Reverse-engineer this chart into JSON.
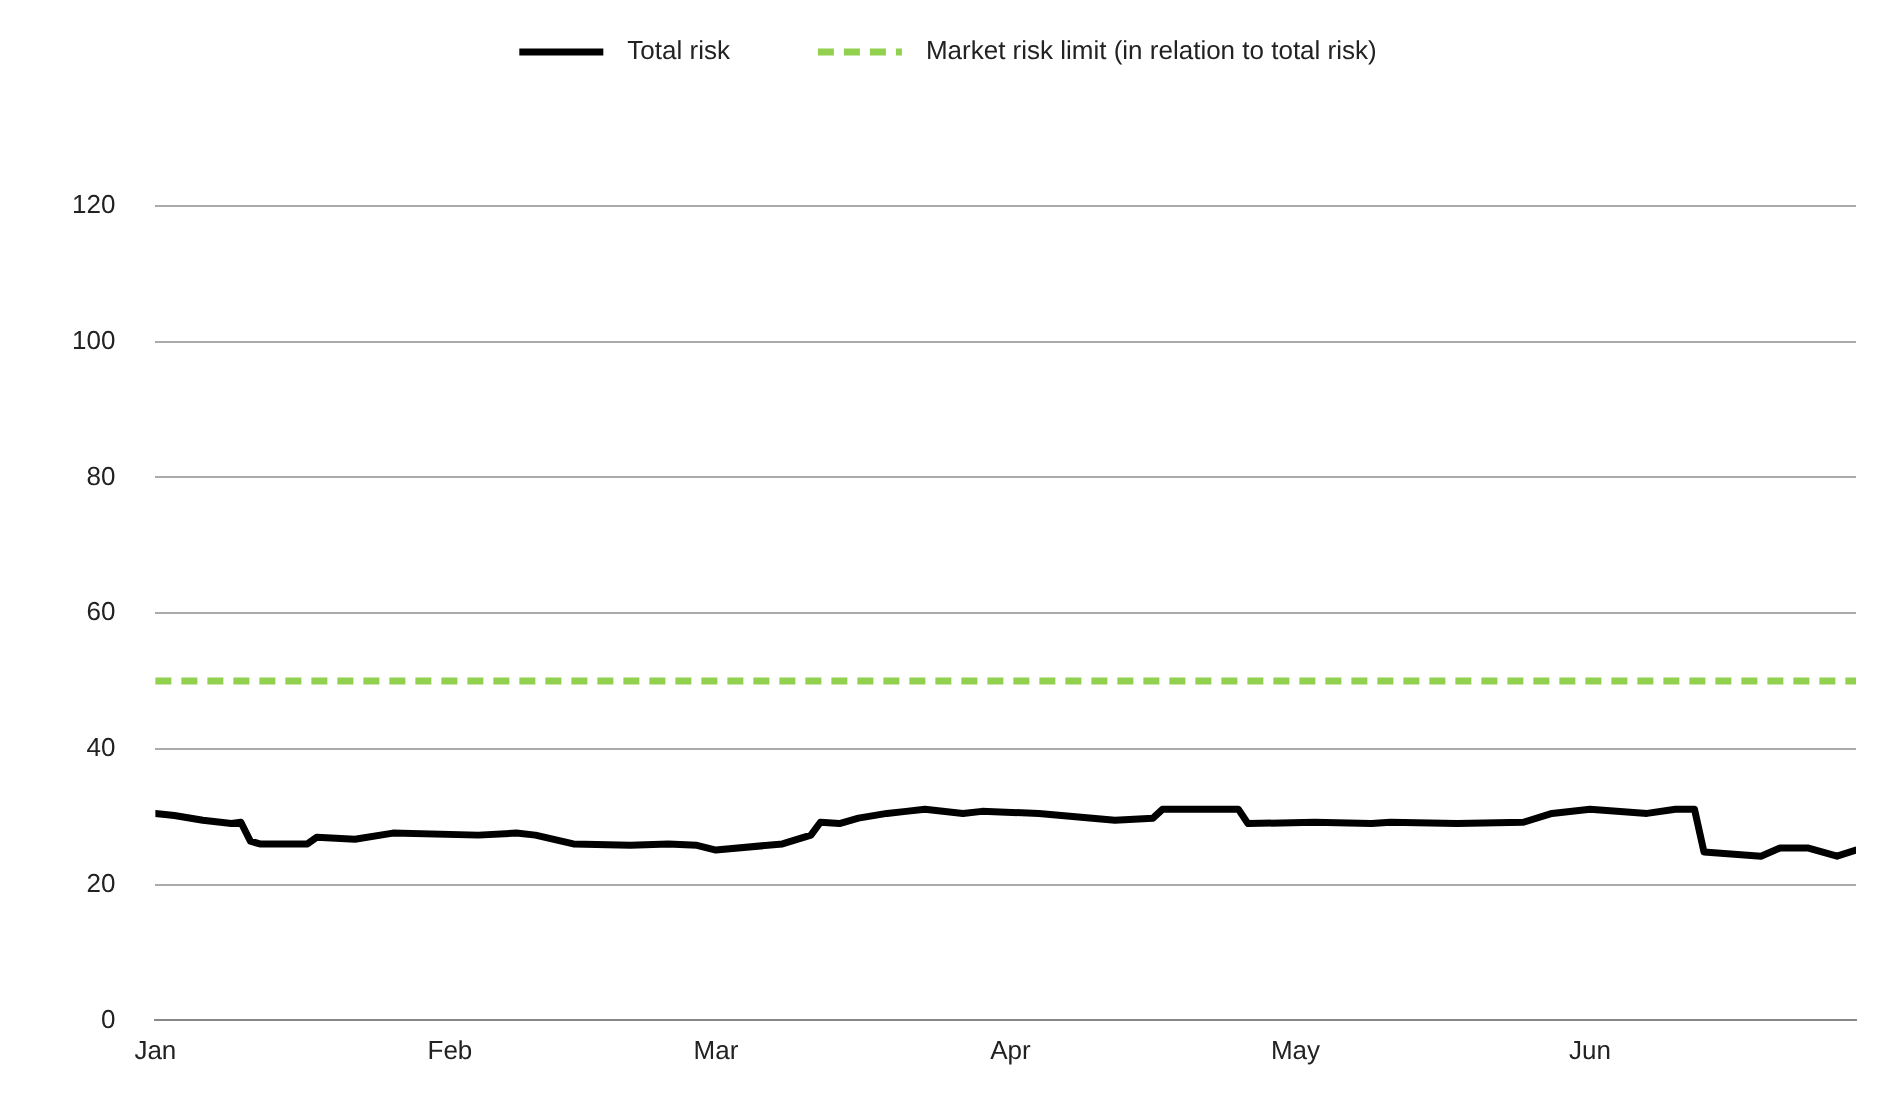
{
  "chart_data": {
    "type": "line",
    "legend": "top",
    "grid": "y",
    "line_style": "solid",
    "marker": "none",
    "x": [
      "--01-01",
      "--01-03",
      "--01-06",
      "--01-09",
      "--01-10",
      "--01-11",
      "--01-12",
      "--01-17",
      "--01-18",
      "--01-22",
      "--01-26",
      "--02-04",
      "--02-08",
      "--02-10",
      "--02-14",
      "--02-20",
      "--02-24",
      "--02-27",
      "--03-01",
      "--03-08",
      "--03-11",
      "--03-12",
      "--03-14",
      "--03-16",
      "--03-19",
      "--03-21",
      "--03-23",
      "--03-27",
      "--03-29",
      "--04-04",
      "--04-12",
      "--04-16",
      "--04-17",
      "--04-25",
      "--04-26",
      "--05-03",
      "--05-09",
      "--05-11",
      "--05-18",
      "--05-25",
      "--05-28",
      "--06-01",
      "--06-07",
      "--06-10",
      "--06-12",
      "--06-13",
      "--06-19",
      "--06-21",
      "--06-24",
      "--06-27",
      "--06-29"
    ],
    "series": [
      {
        "name": "Total risk",
        "color": "#000000",
        "values": [
          30.5,
          30.2,
          29.5,
          29,
          29.2,
          26.4,
          26,
          26,
          27,
          26.7,
          27.6,
          27.3,
          27.6,
          27.3,
          26,
          25.8,
          26,
          25.8,
          25.1,
          26,
          27.3,
          29.2,
          29,
          29.8,
          30.5,
          30.8,
          31.1,
          30.5,
          30.8,
          30.5,
          29.5,
          29.8,
          31.1,
          31.1,
          29,
          29.2,
          29,
          29.2,
          29,
          29.2,
          30.5,
          31.1,
          30.5,
          31.1,
          31.1,
          24.8,
          24.2,
          25.4,
          25.4,
          24.2,
          25.1
        ]
      }
    ],
    "ref_lines": [
      {
        "axis": "y",
        "value": 50,
        "label": "Market risk limit (in relation to total risk)",
        "color": "#92d050",
        "line_style": "dashed"
      }
    ],
    "xlim": [
      "--01-01",
      "--06-29"
    ],
    "xticks": [
      {
        "value": "--01-01",
        "label": "Jan"
      },
      {
        "value": "--02-01",
        "label": "Feb"
      },
      {
        "value": "--03-01",
        "label": "Mar"
      },
      {
        "value": "--04-01",
        "label": "Apr"
      },
      {
        "value": "--05-01",
        "label": "May"
      },
      {
        "value": "--06-01",
        "label": "Jun"
      }
    ],
    "ylim": [
      0,
      120
    ],
    "yticks": [
      0,
      20,
      40,
      60,
      80,
      100,
      120
    ]
  }
}
